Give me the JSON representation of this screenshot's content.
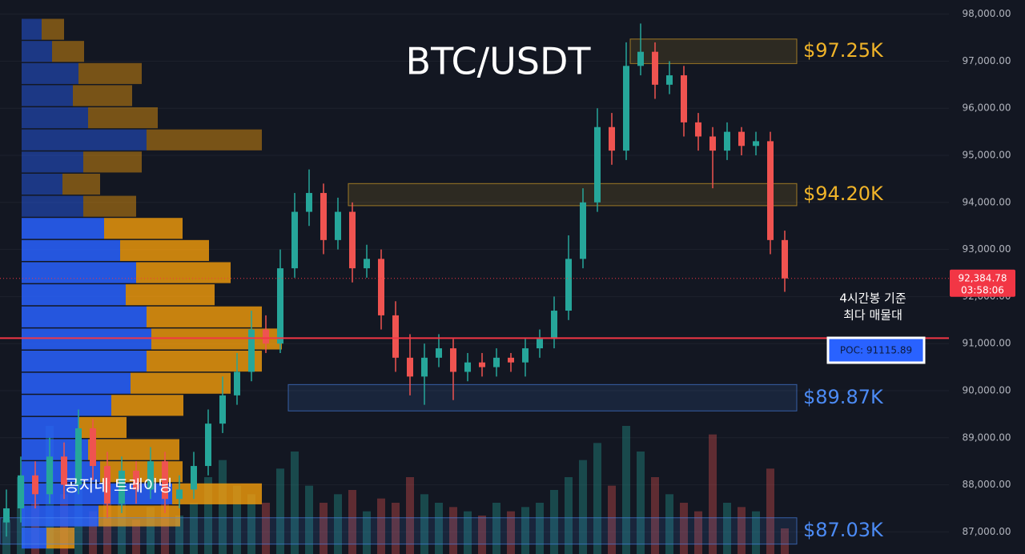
{
  "chart_data": {
    "type": "candlestick",
    "title": "BTC/USDT",
    "watermark": "공지네 트레이딩",
    "annotation": [
      "4시간봉 기준",
      "최다 매물대"
    ],
    "poc": {
      "value": 91115.89,
      "label": "POC: 91115.89",
      "color": "#f23645"
    },
    "last_price": {
      "value": 92384.78,
      "label": "92,384.78",
      "countdown": "03:58:06",
      "color": "#f23645"
    },
    "ylim": [
      86530,
      98300
    ],
    "yticks": [
      {
        "value": 87000,
        "label": "87,000.00"
      },
      {
        "value": 88000,
        "label": "88,000.00"
      },
      {
        "value": 89000,
        "label": "89,000.00"
      },
      {
        "value": 90000,
        "label": "90,000.00"
      },
      {
        "value": 91000,
        "label": "91,000.00"
      },
      {
        "value": 92000,
        "label": "92,000.00"
      },
      {
        "value": 93000,
        "label": "93,000.00"
      },
      {
        "value": 94000,
        "label": "94,000.00"
      },
      {
        "value": 95000,
        "label": "95,000.00"
      },
      {
        "value": 96000,
        "label": "96,000.00"
      },
      {
        "value": 97000,
        "label": "97,000.00"
      },
      {
        "value": 98000,
        "label": "98,000.00"
      }
    ],
    "up_color": "#26a69a",
    "down_color": "#ef5350",
    "open": [
      87200,
      87500,
      88200,
      87800,
      88600,
      88000,
      89200,
      88400,
      87600,
      88300,
      87900,
      88500,
      87700,
      87900,
      88400,
      89300,
      89900,
      90400,
      91300,
      91000,
      92600,
      93800,
      94200,
      93200,
      93800,
      92600,
      92800,
      91600,
      90700,
      90300,
      90700,
      90900,
      90400,
      90600,
      90500,
      90700,
      90600,
      90900,
      91100,
      91700,
      92800,
      94000,
      95600,
      95100,
      96900,
      97200,
      96500,
      96700,
      95700,
      95400,
      95100,
      95500,
      95200,
      95300,
      93200
    ],
    "high": [
      87900,
      88600,
      88500,
      89000,
      88900,
      89600,
      89400,
      88700,
      88600,
      88500,
      88800,
      88700,
      88200,
      88700,
      89600,
      90300,
      90800,
      91700,
      91600,
      93000,
      94200,
      94700,
      94400,
      94100,
      94000,
      93100,
      93000,
      91900,
      91200,
      91000,
      91200,
      91100,
      90800,
      90800,
      90900,
      90800,
      91100,
      91300,
      92000,
      93300,
      94300,
      96000,
      95900,
      97400,
      97800,
      97400,
      97000,
      96900,
      95900,
      95600,
      95700,
      95600,
      95500,
      95500,
      93400
    ],
    "low": [
      86900,
      87200,
      87500,
      87600,
      87700,
      87800,
      88100,
      87300,
      87400,
      87600,
      87700,
      87400,
      87500,
      87700,
      88200,
      89100,
      89700,
      90200,
      90800,
      90800,
      92400,
      93500,
      92900,
      93000,
      92300,
      92400,
      91300,
      90400,
      89900,
      89700,
      90500,
      89800,
      90200,
      90300,
      90300,
      90400,
      90300,
      90700,
      90900,
      91500,
      92600,
      93800,
      94800,
      94900,
      96700,
      96200,
      96300,
      95400,
      95100,
      94300,
      94900,
      95000,
      95000,
      92900,
      92100
    ],
    "close": [
      87500,
      88200,
      87800,
      88600,
      88000,
      89200,
      88400,
      87600,
      88300,
      87900,
      88500,
      87700,
      87900,
      88400,
      89300,
      89900,
      90400,
      91300,
      91000,
      92600,
      93800,
      94200,
      93200,
      93800,
      92600,
      92800,
      91600,
      90700,
      90300,
      90700,
      90900,
      90400,
      90600,
      90500,
      90700,
      90600,
      90900,
      91100,
      91700,
      92800,
      94000,
      95600,
      95100,
      96900,
      97200,
      96500,
      96700,
      95700,
      95400,
      95100,
      95500,
      95200,
      95300,
      93200,
      92384.78
    ],
    "volume": [
      40,
      90,
      60,
      150,
      70,
      120,
      50,
      80,
      60,
      40,
      55,
      70,
      45,
      60,
      90,
      110,
      80,
      70,
      60,
      100,
      120,
      80,
      60,
      70,
      75,
      50,
      65,
      60,
      90,
      70,
      60,
      55,
      50,
      45,
      60,
      50,
      55,
      60,
      75,
      90,
      110,
      130,
      80,
      150,
      120,
      90,
      70,
      60,
      50,
      140,
      60,
      55,
      50,
      100,
      30
    ],
    "volume_profile": {
      "price_edges": [
        97900,
        97430,
        96960,
        96490,
        96020,
        95550,
        95080,
        94610,
        94140,
        93670,
        93200,
        92730,
        92260,
        91790,
        91320,
        90850,
        90380,
        89910,
        89440,
        88970,
        88500,
        88030,
        87560,
        87090,
        86620
      ],
      "buy": [
        25,
        38,
        71,
        64,
        83,
        156,
        77,
        51,
        77,
        103,
        123,
        143,
        130,
        156,
        162,
        156,
        136,
        112,
        71,
        83,
        98,
        188,
        96,
        31
      ],
      "sell": [
        28,
        40,
        79,
        74,
        87,
        144,
        73,
        47,
        66,
        98,
        111,
        118,
        111,
        144,
        163,
        144,
        125,
        90,
        60,
        114,
        103,
        112,
        102,
        35
      ],
      "buy_color": "#2962ff",
      "sell_color": "#f59e0b"
    },
    "zones": [
      {
        "label": "$97.25K",
        "top": 97470,
        "bottom": 96950,
        "color": "#f0b429"
      },
      {
        "label": "$94.20K",
        "top": 94400,
        "bottom": 93930,
        "color": "#f0b429"
      },
      {
        "label": "$89.87K",
        "top": 90130,
        "bottom": 89570,
        "color": "#4c8bf5"
      },
      {
        "label": "$87.03K",
        "top": 87300,
        "bottom": 86740,
        "color": "#4c8bf5"
      }
    ]
  }
}
